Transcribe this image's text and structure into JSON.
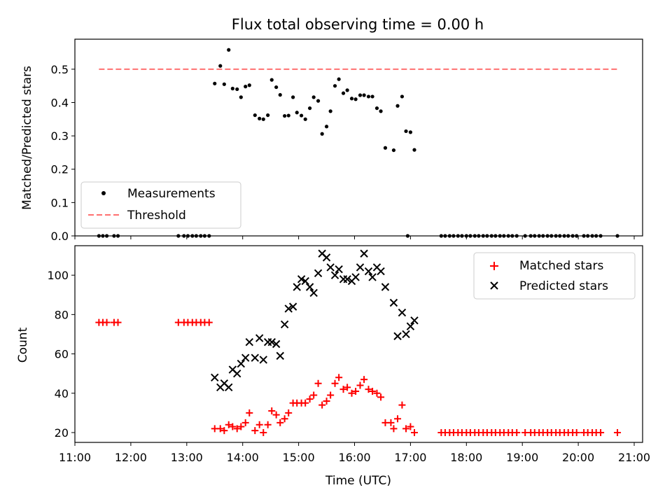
{
  "figure": {
    "title": "Flux total observing time = 0.00 h"
  },
  "chart_data": [
    {
      "type": "scatter",
      "ylabel": "Matched/Predicted stars",
      "xlim": [
        11.0,
        21.15
      ],
      "ylim": [
        0,
        0.59
      ],
      "yticks": [
        0,
        0.1,
        0.2,
        0.3,
        0.4,
        0.5
      ],
      "ytick_labels": [
        "0.0",
        "0.1",
        "0.2",
        "0.3",
        "0.4",
        "0.5"
      ],
      "legend": {
        "placement": "lower-left",
        "entries": [
          {
            "label": "Measurements",
            "marker": "dot",
            "color": "#000000"
          },
          {
            "label": "Threshold",
            "marker": "dashed-line",
            "color": "#ff7070"
          }
        ]
      },
      "threshold": {
        "name": "Threshold",
        "value": 0.5,
        "x_start": 11.43,
        "x_end": 20.7,
        "color": "#ff7070"
      },
      "series": [
        {
          "name": "Measurements",
          "color": "#000000",
          "points": [
            [
              11.43,
              0
            ],
            [
              11.5,
              0
            ],
            [
              11.57,
              0
            ],
            [
              11.7,
              0
            ],
            [
              11.77,
              0
            ],
            [
              12.85,
              0
            ],
            [
              12.95,
              0
            ],
            [
              13.02,
              0
            ],
            [
              13.1,
              0
            ],
            [
              13.17,
              0
            ],
            [
              13.25,
              0
            ],
            [
              13.32,
              0
            ],
            [
              13.4,
              0
            ],
            [
              13.5,
              0.457
            ],
            [
              13.6,
              0.51
            ],
            [
              13.67,
              0.455
            ],
            [
              13.75,
              0.558
            ],
            [
              13.82,
              0.442
            ],
            [
              13.9,
              0.44
            ],
            [
              13.97,
              0.416
            ],
            [
              14.05,
              0.448
            ],
            [
              14.12,
              0.452
            ],
            [
              14.22,
              0.362
            ],
            [
              14.3,
              0.352
            ],
            [
              14.37,
              0.35
            ],
            [
              14.45,
              0.362
            ],
            [
              14.52,
              0.468
            ],
            [
              14.6,
              0.446
            ],
            [
              14.67,
              0.423
            ],
            [
              14.75,
              0.36
            ],
            [
              14.82,
              0.361
            ],
            [
              14.9,
              0.416
            ],
            [
              14.97,
              0.37
            ],
            [
              15.05,
              0.361
            ],
            [
              15.12,
              0.35
            ],
            [
              15.2,
              0.383
            ],
            [
              15.27,
              0.416
            ],
            [
              15.35,
              0.405
            ],
            [
              15.42,
              0.306
            ],
            [
              15.5,
              0.328
            ],
            [
              15.57,
              0.374
            ],
            [
              15.65,
              0.45
            ],
            [
              15.72,
              0.47
            ],
            [
              15.8,
              0.428
            ],
            [
              15.87,
              0.437
            ],
            [
              15.95,
              0.412
            ],
            [
              16.02,
              0.41
            ],
            [
              16.1,
              0.422
            ],
            [
              16.17,
              0.422
            ],
            [
              16.25,
              0.418
            ],
            [
              16.32,
              0.418
            ],
            [
              16.4,
              0.383
            ],
            [
              16.47,
              0.374
            ],
            [
              16.55,
              0.264
            ],
            [
              16.7,
              0.257
            ],
            [
              16.77,
              0.39
            ],
            [
              16.85,
              0.418
            ],
            [
              16.92,
              0.314
            ],
            [
              17.0,
              0.311
            ],
            [
              17.07,
              0.258
            ],
            [
              16.95,
              0
            ],
            [
              17.55,
              0
            ],
            [
              17.62,
              0
            ],
            [
              17.7,
              0
            ],
            [
              17.77,
              0
            ],
            [
              17.85,
              0
            ],
            [
              17.92,
              0
            ],
            [
              18.0,
              0
            ],
            [
              18.07,
              0
            ],
            [
              18.15,
              0
            ],
            [
              18.22,
              0
            ],
            [
              18.3,
              0
            ],
            [
              18.37,
              0
            ],
            [
              18.45,
              0
            ],
            [
              18.52,
              0
            ],
            [
              18.6,
              0
            ],
            [
              18.67,
              0
            ],
            [
              18.75,
              0
            ],
            [
              18.82,
              0
            ],
            [
              18.9,
              0
            ],
            [
              19.05,
              0
            ],
            [
              19.15,
              0
            ],
            [
              19.22,
              0
            ],
            [
              19.3,
              0
            ],
            [
              19.37,
              0
            ],
            [
              19.45,
              0
            ],
            [
              19.52,
              0
            ],
            [
              19.6,
              0
            ],
            [
              19.67,
              0
            ],
            [
              19.75,
              0
            ],
            [
              19.82,
              0
            ],
            [
              19.9,
              0
            ],
            [
              19.97,
              0
            ],
            [
              20.1,
              0
            ],
            [
              20.17,
              0
            ],
            [
              20.25,
              0
            ],
            [
              20.32,
              0
            ],
            [
              20.4,
              0
            ],
            [
              20.7,
              0
            ]
          ]
        }
      ]
    },
    {
      "type": "scatter",
      "xlabel": "Time (UTC)",
      "ylabel": "Count",
      "xlim": [
        11.0,
        21.15
      ],
      "ylim": [
        15,
        115
      ],
      "xticks": [
        11,
        12,
        13,
        14,
        15,
        16,
        17,
        18,
        19,
        20,
        21
      ],
      "xtick_labels": [
        "11:00",
        "12:00",
        "13:00",
        "14:00",
        "15:00",
        "16:00",
        "17:00",
        "18:00",
        "19:00",
        "20:00",
        "21:00"
      ],
      "yticks": [
        20,
        40,
        60,
        80,
        100
      ],
      "ytick_labels": [
        "20",
        "40",
        "60",
        "80",
        "100"
      ],
      "legend": {
        "placement": "upper-right",
        "entries": [
          {
            "label": "Matched stars",
            "marker": "plus",
            "color": "#ff0000"
          },
          {
            "label": "Predicted stars",
            "marker": "x",
            "color": "#000000"
          }
        ]
      },
      "series": [
        {
          "name": "Matched stars",
          "marker": "plus",
          "color": "#ff0000",
          "points": [
            [
              11.43,
              76
            ],
            [
              11.5,
              76
            ],
            [
              11.57,
              76
            ],
            [
              11.7,
              76
            ],
            [
              11.77,
              76
            ],
            [
              12.85,
              76
            ],
            [
              12.95,
              76
            ],
            [
              13.02,
              76
            ],
            [
              13.1,
              76
            ],
            [
              13.17,
              76
            ],
            [
              13.25,
              76
            ],
            [
              13.32,
              76
            ],
            [
              13.4,
              76
            ],
            [
              13.5,
              22
            ],
            [
              13.6,
              22
            ],
            [
              13.67,
              21
            ],
            [
              13.75,
              24
            ],
            [
              13.82,
              23
            ],
            [
              13.9,
              22
            ],
            [
              13.97,
              23
            ],
            [
              14.05,
              25
            ],
            [
              14.12,
              30
            ],
            [
              14.22,
              21
            ],
            [
              14.3,
              24
            ],
            [
              14.37,
              20
            ],
            [
              14.45,
              24
            ],
            [
              14.52,
              31
            ],
            [
              14.6,
              29
            ],
            [
              14.67,
              25
            ],
            [
              14.75,
              27
            ],
            [
              14.82,
              30
            ],
            [
              14.9,
              35
            ],
            [
              14.97,
              35
            ],
            [
              15.05,
              35
            ],
            [
              15.12,
              35
            ],
            [
              15.2,
              37
            ],
            [
              15.27,
              39
            ],
            [
              15.35,
              45
            ],
            [
              15.42,
              34
            ],
            [
              15.5,
              36
            ],
            [
              15.57,
              39
            ],
            [
              15.65,
              45
            ],
            [
              15.72,
              48
            ],
            [
              15.8,
              42
            ],
            [
              15.87,
              43
            ],
            [
              15.95,
              40
            ],
            [
              16.02,
              41
            ],
            [
              16.1,
              44
            ],
            [
              16.17,
              47
            ],
            [
              16.25,
              42
            ],
            [
              16.32,
              41
            ],
            [
              16.4,
              40
            ],
            [
              16.47,
              38
            ],
            [
              16.55,
              25
            ],
            [
              16.65,
              25
            ],
            [
              16.7,
              22
            ],
            [
              16.77,
              27
            ],
            [
              16.85,
              34
            ],
            [
              16.92,
              22
            ],
            [
              17.0,
              23
            ],
            [
              17.07,
              20
            ],
            [
              17.55,
              20
            ],
            [
              17.62,
              20
            ],
            [
              17.7,
              20
            ],
            [
              17.77,
              20
            ],
            [
              17.85,
              20
            ],
            [
              17.92,
              20
            ],
            [
              18.0,
              20
            ],
            [
              18.07,
              20
            ],
            [
              18.15,
              20
            ],
            [
              18.22,
              20
            ],
            [
              18.3,
              20
            ],
            [
              18.37,
              20
            ],
            [
              18.45,
              20
            ],
            [
              18.52,
              20
            ],
            [
              18.6,
              20
            ],
            [
              18.67,
              20
            ],
            [
              18.75,
              20
            ],
            [
              18.82,
              20
            ],
            [
              18.9,
              20
            ],
            [
              19.05,
              20
            ],
            [
              19.15,
              20
            ],
            [
              19.22,
              20
            ],
            [
              19.3,
              20
            ],
            [
              19.37,
              20
            ],
            [
              19.45,
              20
            ],
            [
              19.52,
              20
            ],
            [
              19.6,
              20
            ],
            [
              19.67,
              20
            ],
            [
              19.75,
              20
            ],
            [
              19.82,
              20
            ],
            [
              19.9,
              20
            ],
            [
              19.97,
              20
            ],
            [
              20.1,
              20
            ],
            [
              20.17,
              20
            ],
            [
              20.25,
              20
            ],
            [
              20.32,
              20
            ],
            [
              20.4,
              20
            ],
            [
              20.7,
              20
            ]
          ]
        },
        {
          "name": "Predicted stars",
          "marker": "x",
          "color": "#000000",
          "points": [
            [
              13.5,
              48
            ],
            [
              13.6,
              43
            ],
            [
              13.67,
              45
            ],
            [
              13.75,
              43
            ],
            [
              13.82,
              52
            ],
            [
              13.9,
              50
            ],
            [
              13.97,
              55
            ],
            [
              14.05,
              58
            ],
            [
              14.12,
              66
            ],
            [
              14.22,
              58
            ],
            [
              14.3,
              68
            ],
            [
              14.37,
              57
            ],
            [
              14.45,
              66
            ],
            [
              14.52,
              66
            ],
            [
              14.6,
              65
            ],
            [
              14.67,
              59
            ],
            [
              14.75,
              75
            ],
            [
              14.82,
              83
            ],
            [
              14.9,
              84
            ],
            [
              14.97,
              94
            ],
            [
              15.05,
              98
            ],
            [
              15.12,
              97
            ],
            [
              15.2,
              94
            ],
            [
              15.27,
              91
            ],
            [
              15.35,
              101
            ],
            [
              15.42,
              111
            ],
            [
              15.5,
              109
            ],
            [
              15.57,
              104
            ],
            [
              15.65,
              100
            ],
            [
              15.72,
              103
            ],
            [
              15.8,
              98
            ],
            [
              15.87,
              98
            ],
            [
              15.95,
              97
            ],
            [
              16.02,
              99
            ],
            [
              16.1,
              104
            ],
            [
              16.17,
              111
            ],
            [
              16.25,
              102
            ],
            [
              16.32,
              99
            ],
            [
              16.4,
              104
            ],
            [
              16.47,
              102
            ],
            [
              16.55,
              94
            ],
            [
              16.7,
              86
            ],
            [
              16.77,
              69
            ],
            [
              16.85,
              81
            ],
            [
              16.92,
              70
            ],
            [
              17.0,
              74
            ],
            [
              17.07,
              77
            ]
          ]
        }
      ]
    }
  ]
}
